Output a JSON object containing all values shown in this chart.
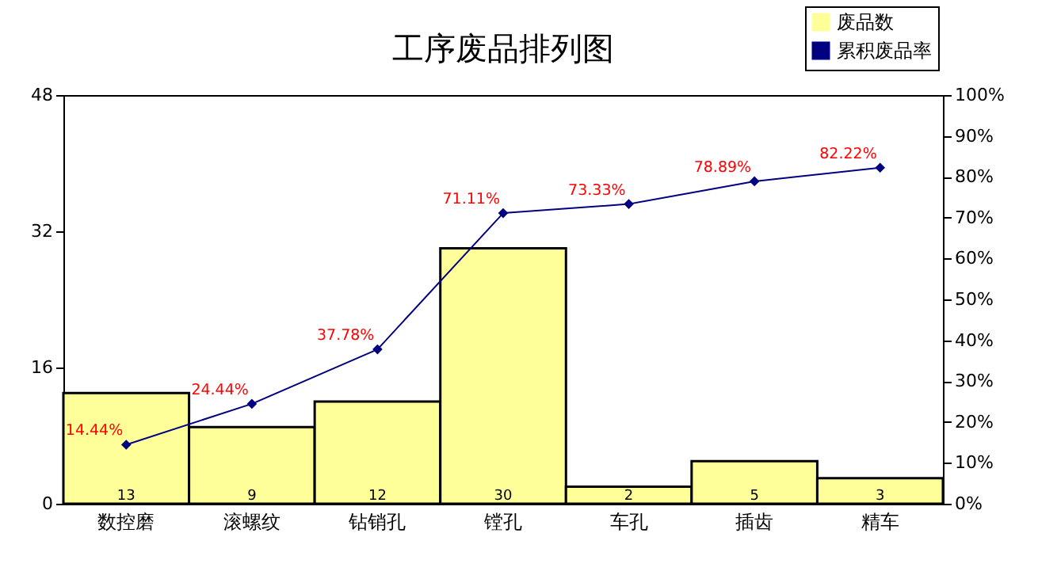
{
  "chart_data": {
    "type": "bar",
    "title": "工序废品排列图",
    "categories": [
      "数控磨",
      "滚螺纹",
      "钻销孔",
      "镗孔",
      "车孔",
      "插齿",
      "精车"
    ],
    "series": [
      {
        "name": "废品数",
        "type": "bar",
        "color": "#ffff99",
        "values": [
          13,
          9,
          12,
          30,
          2,
          5,
          3
        ],
        "value_labels": [
          "13",
          "9",
          "12",
          "30",
          "2",
          "5",
          "3"
        ]
      },
      {
        "name": "累积废品率",
        "type": "line",
        "axis": "y2",
        "color": "#000080",
        "marker": "diamond",
        "line_style": "solid",
        "values": [
          14.44,
          24.44,
          37.78,
          71.11,
          73.33,
          78.89,
          82.22
        ],
        "value_labels": [
          "14.44%",
          "24.44%",
          "37.78%",
          "71.11%",
          "73.33%",
          "78.89%",
          "82.22%"
        ]
      }
    ],
    "ylim": [
      0,
      48
    ],
    "yticks": [
      0,
      16,
      32,
      48
    ],
    "y2lim": [
      0,
      100
    ],
    "y2ticks": [
      {
        "value": 0,
        "label": "0%"
      },
      {
        "value": 10,
        "label": "10%"
      },
      {
        "value": 20,
        "label": "20%"
      },
      {
        "value": 30,
        "label": "30%"
      },
      {
        "value": 40,
        "label": "40%"
      },
      {
        "value": 50,
        "label": "50%"
      },
      {
        "value": 60,
        "label": "60%"
      },
      {
        "value": 70,
        "label": "70%"
      },
      {
        "value": 80,
        "label": "80%"
      },
      {
        "value": 90,
        "label": "90%"
      },
      {
        "value": 100,
        "label": "100%"
      }
    ],
    "legend": "top right",
    "grid": false
  }
}
